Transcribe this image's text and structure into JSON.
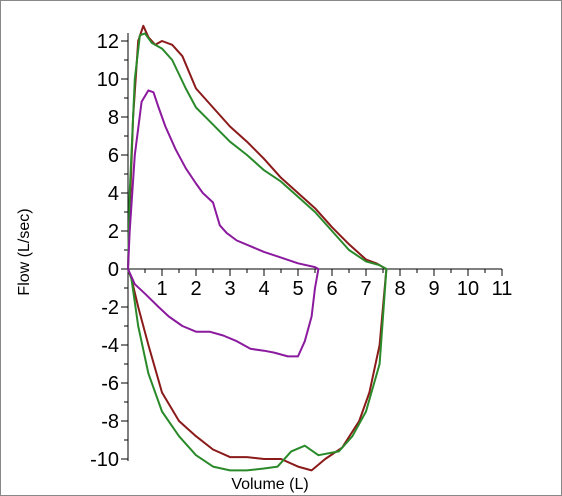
{
  "chart_data": {
    "type": "line",
    "xlabel": "Volume (L)",
    "ylabel": "Flow  (L/sec)",
    "xlim": [
      0,
      11
    ],
    "ylim": [
      -10,
      12
    ],
    "xticks": [
      1,
      2,
      3,
      4,
      5,
      6,
      7,
      8,
      9,
      10,
      11
    ],
    "yticks": [
      -10,
      -8,
      -6,
      -4,
      -2,
      0,
      2,
      4,
      6,
      8,
      10,
      12
    ],
    "grid": false,
    "series": [
      {
        "color": "#8b1a1a",
        "points": [
          [
            0,
            0
          ],
          [
            0.05,
            3
          ],
          [
            0.15,
            8
          ],
          [
            0.3,
            12
          ],
          [
            0.45,
            12.8
          ],
          [
            0.6,
            12.2
          ],
          [
            0.8,
            11.8
          ],
          [
            1.0,
            12.0
          ],
          [
            1.3,
            11.8
          ],
          [
            1.6,
            11.2
          ],
          [
            2.0,
            9.5
          ],
          [
            2.5,
            8.5
          ],
          [
            3.0,
            7.5
          ],
          [
            3.5,
            6.7
          ],
          [
            4.0,
            5.8
          ],
          [
            4.5,
            4.8
          ],
          [
            5.0,
            4.0
          ],
          [
            5.5,
            3.2
          ],
          [
            6.0,
            2.2
          ],
          [
            6.5,
            1.3
          ],
          [
            7.0,
            0.5
          ],
          [
            7.3,
            0.3
          ],
          [
            7.6,
            0
          ],
          [
            7.4,
            -4
          ],
          [
            7.1,
            -6.5
          ],
          [
            6.8,
            -8
          ],
          [
            6.3,
            -9.4
          ],
          [
            5.8,
            -10
          ],
          [
            5.4,
            -10.6
          ],
          [
            5.0,
            -10.4
          ],
          [
            4.5,
            -10
          ],
          [
            4.0,
            -10
          ],
          [
            3.5,
            -9.9
          ],
          [
            3.0,
            -9.9
          ],
          [
            2.5,
            -9.5
          ],
          [
            2.0,
            -8.8
          ],
          [
            1.5,
            -8.0
          ],
          [
            1.0,
            -6.5
          ],
          [
            0.6,
            -4
          ],
          [
            0.3,
            -2
          ],
          [
            0.1,
            -0.5
          ],
          [
            0,
            0
          ]
        ]
      },
      {
        "color": "#2a8a2a",
        "points": [
          [
            0,
            0
          ],
          [
            0.05,
            4
          ],
          [
            0.2,
            10
          ],
          [
            0.35,
            12.3
          ],
          [
            0.5,
            12.4
          ],
          [
            0.7,
            11.9
          ],
          [
            1.0,
            11.6
          ],
          [
            1.3,
            11.0
          ],
          [
            1.7,
            9.5
          ],
          [
            2.0,
            8.5
          ],
          [
            2.5,
            7.6
          ],
          [
            3.0,
            6.7
          ],
          [
            3.5,
            6.0
          ],
          [
            4.0,
            5.2
          ],
          [
            4.5,
            4.6
          ],
          [
            5.0,
            3.8
          ],
          [
            5.5,
            3.0
          ],
          [
            6.0,
            2.0
          ],
          [
            6.5,
            1.0
          ],
          [
            7.0,
            0.4
          ],
          [
            7.4,
            0.2
          ],
          [
            7.6,
            0
          ],
          [
            7.4,
            -5
          ],
          [
            7.0,
            -7.5
          ],
          [
            6.6,
            -8.8
          ],
          [
            6.2,
            -9.6
          ],
          [
            5.6,
            -9.8
          ],
          [
            5.2,
            -9.3
          ],
          [
            4.8,
            -9.6
          ],
          [
            4.4,
            -10.4
          ],
          [
            4.0,
            -10.5
          ],
          [
            3.5,
            -10.6
          ],
          [
            3.0,
            -10.6
          ],
          [
            2.5,
            -10.4
          ],
          [
            2.0,
            -9.8
          ],
          [
            1.5,
            -8.8
          ],
          [
            1.0,
            -7.5
          ],
          [
            0.6,
            -5.5
          ],
          [
            0.3,
            -3
          ],
          [
            0.1,
            -0.5
          ],
          [
            0,
            0
          ]
        ]
      },
      {
        "color": "#8b1a9e",
        "points": [
          [
            0,
            0
          ],
          [
            0.05,
            2
          ],
          [
            0.2,
            6
          ],
          [
            0.4,
            8.8
          ],
          [
            0.6,
            9.4
          ],
          [
            0.75,
            9.3
          ],
          [
            0.9,
            8.5
          ],
          [
            1.1,
            7.5
          ],
          [
            1.4,
            6.3
          ],
          [
            1.7,
            5.3
          ],
          [
            2.0,
            4.5
          ],
          [
            2.2,
            4.0
          ],
          [
            2.5,
            3.5
          ],
          [
            2.7,
            2.3
          ],
          [
            2.9,
            1.9
          ],
          [
            3.2,
            1.5
          ],
          [
            3.6,
            1.2
          ],
          [
            4.0,
            0.9
          ],
          [
            4.5,
            0.6
          ],
          [
            5.0,
            0.3
          ],
          [
            5.5,
            0.1
          ],
          [
            5.6,
            0
          ],
          [
            5.5,
            -1
          ],
          [
            5.4,
            -2.5
          ],
          [
            5.2,
            -3.8
          ],
          [
            5.0,
            -4.6
          ],
          [
            4.7,
            -4.6
          ],
          [
            4.3,
            -4.4
          ],
          [
            4.0,
            -4.3
          ],
          [
            3.6,
            -4.2
          ],
          [
            3.2,
            -3.8
          ],
          [
            2.8,
            -3.5
          ],
          [
            2.4,
            -3.3
          ],
          [
            2.0,
            -3.3
          ],
          [
            1.6,
            -3.0
          ],
          [
            1.2,
            -2.5
          ],
          [
            0.9,
            -2.0
          ],
          [
            0.5,
            -1.3
          ],
          [
            0.2,
            -0.8
          ],
          [
            0,
            0
          ]
        ]
      }
    ]
  }
}
